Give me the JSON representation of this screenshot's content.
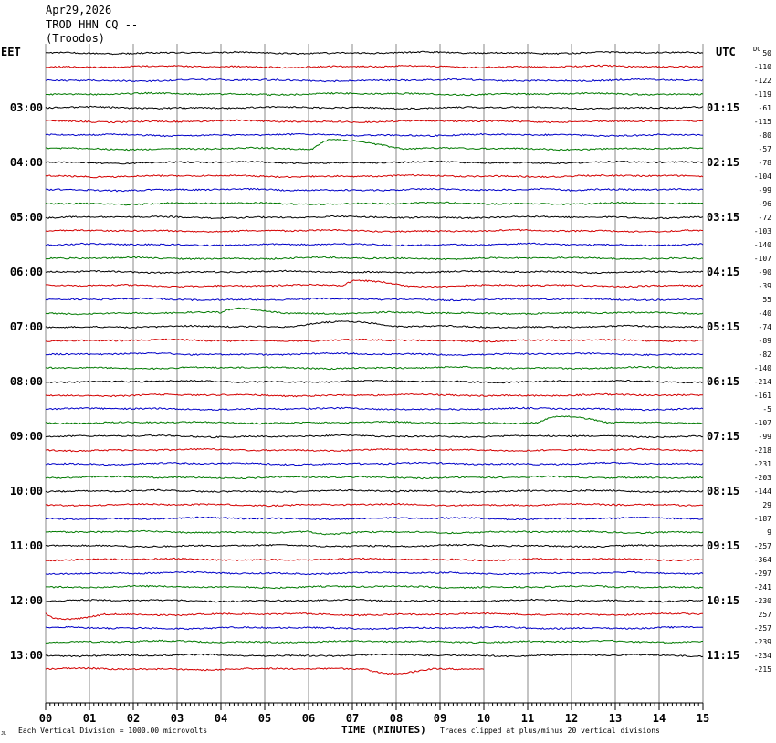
{
  "header": {
    "date": "Apr29,2026",
    "station": "TROD HHN CQ --",
    "location": "(Troodos)"
  },
  "labels": {
    "left_zone": "EET",
    "right_zone": "UTC",
    "dc": "DC",
    "xlabel": "TIME (MINUTES)",
    "scale_note": "Each Vertical Division = 1000.00 microvolts",
    "clip_note": "Traces clipped at plus/minus 20 vertical divisions",
    "corner_mark": "JL"
  },
  "chart_data": {
    "type": "line",
    "title": "",
    "xlabel": "TIME (MINUTES)",
    "x_ticks": [
      "00",
      "01",
      "02",
      "03",
      "04",
      "05",
      "06",
      "07",
      "08",
      "09",
      "10",
      "11",
      "12",
      "13",
      "14",
      "15"
    ],
    "xlim": [
      0,
      15
    ],
    "grid": true,
    "trace_colors": [
      "#000000",
      "#d40000",
      "#0000c8",
      "#007a00"
    ],
    "left_hour_labels": [
      "03:00",
      "04:00",
      "05:00",
      "06:00",
      "07:00",
      "08:00",
      "09:00",
      "10:00",
      "11:00",
      "12:00",
      "13:00"
    ],
    "right_hour_labels": [
      "01:15",
      "02:15",
      "03:15",
      "04:15",
      "05:15",
      "06:15",
      "07:15",
      "08:15",
      "09:15",
      "10:15",
      "11:15"
    ],
    "dc_offsets": [
      "50",
      "-110",
      "-122",
      "-119",
      "-61",
      "-115",
      "-80",
      "-57",
      "-78",
      "-104",
      "-99",
      "-96",
      "-72",
      "-103",
      "-140",
      "-107",
      "-90",
      "-39",
      "55",
      "-40",
      "-74",
      "-89",
      "-82",
      "-140",
      "-214",
      "-161",
      "-5",
      "-107",
      "-99",
      "-218",
      "-231",
      "-203",
      "-144",
      "29",
      "-187",
      "9",
      "-257",
      "-364",
      "-297",
      "-241",
      "-230",
      "257",
      "-257",
      "-239",
      "-234",
      "-215"
    ],
    "trace_count": 46,
    "last_trace_end_minute": 10,
    "events": [
      {
        "trace": 7,
        "start": 6.1,
        "peak": 6.5,
        "end": 8.2,
        "amp": 10
      },
      {
        "trace": 10,
        "start": 11.0,
        "peak": 11.4,
        "end": 12.0,
        "amp": 2
      },
      {
        "trace": 17,
        "start": 6.8,
        "peak": 7.1,
        "end": 8.2,
        "amp": 6
      },
      {
        "trace": 19,
        "start": 4.0,
        "peak": 4.4,
        "end": 5.4,
        "amp": 5
      },
      {
        "trace": 20,
        "start": 5.6,
        "peak": 6.6,
        "end": 8.0,
        "amp": 6
      },
      {
        "trace": 27,
        "start": 11.2,
        "peak": 11.8,
        "end": 12.8,
        "amp": 6
      },
      {
        "trace": 35,
        "start": 6.0,
        "peak": 6.4,
        "end": 7.2,
        "amp": -3
      },
      {
        "trace": 41,
        "start": 0.0,
        "peak": 0.3,
        "end": 1.3,
        "amp": -6
      },
      {
        "trace": 45,
        "start": 7.3,
        "peak": 7.9,
        "end": 8.8,
        "amp": -4
      }
    ]
  }
}
